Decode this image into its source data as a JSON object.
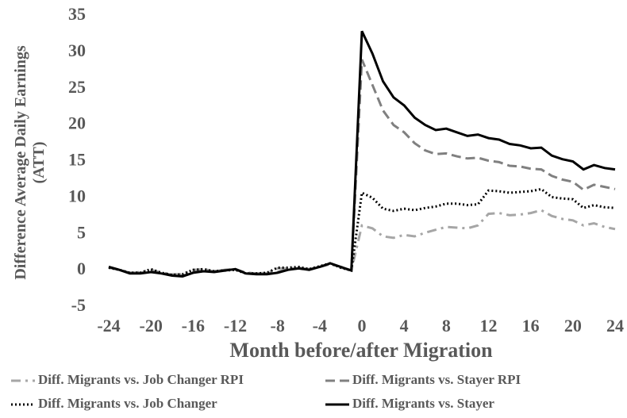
{
  "chart_data": {
    "type": "line",
    "ylabel": "Difference Average Daily Earnings (ATT)",
    "xlabel": "Month before/after Migration",
    "x": [
      -24,
      -23,
      -22,
      -21,
      -20,
      -19,
      -18,
      -17,
      -16,
      -15,
      -14,
      -13,
      -12,
      -11,
      -10,
      -9,
      -8,
      -7,
      -6,
      -5,
      -4,
      -3,
      -2,
      -1,
      0,
      1,
      2,
      3,
      4,
      5,
      6,
      7,
      8,
      9,
      10,
      11,
      12,
      13,
      14,
      15,
      16,
      17,
      18,
      19,
      20,
      21,
      22,
      23,
      24
    ],
    "xlim": [
      -24,
      24
    ],
    "xticks": [
      -24,
      -20,
      -16,
      -12,
      -8,
      -4,
      0,
      4,
      8,
      12,
      16,
      20,
      24
    ],
    "ylim": [
      -5,
      35
    ],
    "yticks": [
      -5,
      0,
      5,
      10,
      15,
      20,
      25,
      30,
      35
    ],
    "grid": false,
    "series": [
      {
        "name": "Diff. Migrants vs. Job Changer RPI",
        "color": "#a6a6a6",
        "dash": "dashdot",
        "values": [
          0.4,
          0.1,
          -0.3,
          -0.2,
          0.1,
          -0.3,
          -0.5,
          -0.5,
          0.1,
          0.2,
          -0.1,
          0.1,
          0.1,
          -0.3,
          -0.4,
          -0.3,
          0.3,
          0.3,
          0.4,
          0.2,
          0.5,
          0.9,
          0.4,
          0,
          6.2,
          5.8,
          4.7,
          4.5,
          4.9,
          4.7,
          5.2,
          5.6,
          6.0,
          5.9,
          5.8,
          6.2,
          7.8,
          7.9,
          7.6,
          7.7,
          7.9,
          8.3,
          7.5,
          7.1,
          6.9,
          6.2,
          6.5,
          6.0,
          5.7
        ]
      },
      {
        "name": "Diff. Migrants vs. Stayer RPI",
        "color": "#808080",
        "dash": "dashed",
        "values": [
          0.5,
          0.1,
          -0.3,
          -0.3,
          -0.1,
          -0.3,
          -0.6,
          -0.7,
          -0.2,
          0,
          -0.1,
          0.1,
          0.2,
          -0.3,
          -0.4,
          -0.4,
          -0.2,
          0.2,
          0.3,
          0.2,
          0.5,
          0.9,
          0.5,
          0,
          29.0,
          25.5,
          22.0,
          20.0,
          19.0,
          17.5,
          16.5,
          16.0,
          16.1,
          15.7,
          15.4,
          15.5,
          15.1,
          14.9,
          14.4,
          14.3,
          14.0,
          13.9,
          13.0,
          12.5,
          12.2,
          11.1,
          11.8,
          11.5,
          11.2
        ]
      },
      {
        "name": "Diff. Migrants vs. Job Changer",
        "color": "#000000",
        "dash": "dotted",
        "values": [
          0.4,
          0.1,
          -0.3,
          -0.3,
          0.2,
          -0.3,
          -0.6,
          -0.5,
          0.1,
          0.2,
          -0.1,
          0,
          0.1,
          -0.4,
          -0.4,
          -0.3,
          0.4,
          0.4,
          0.5,
          0.2,
          0.6,
          1.0,
          0.4,
          0,
          10.7,
          10.0,
          8.5,
          8.2,
          8.5,
          8.3,
          8.6,
          8.8,
          9.2,
          9.2,
          9.0,
          9.1,
          11.0,
          10.9,
          10.7,
          10.8,
          10.9,
          11.2,
          10.1,
          9.9,
          9.8,
          8.6,
          9.0,
          8.7,
          8.6
        ]
      },
      {
        "name": "Diff. Migrants vs. Stayer",
        "color": "#000000",
        "dash": "solid",
        "values": [
          0.5,
          0.1,
          -0.4,
          -0.4,
          -0.2,
          -0.4,
          -0.7,
          -0.8,
          -0.3,
          -0.1,
          -0.2,
          0,
          0.2,
          -0.4,
          -0.5,
          -0.5,
          -0.3,
          0.1,
          0.3,
          0.1,
          0.5,
          1.0,
          0.5,
          0,
          32.9,
          29.8,
          26.0,
          23.8,
          22.7,
          21.0,
          20.0,
          19.3,
          19.5,
          19.0,
          18.5,
          18.7,
          18.2,
          18.0,
          17.4,
          17.2,
          16.8,
          16.9,
          15.8,
          15.3,
          15.0,
          13.9,
          14.5,
          14.1,
          13.9
        ]
      }
    ]
  }
}
